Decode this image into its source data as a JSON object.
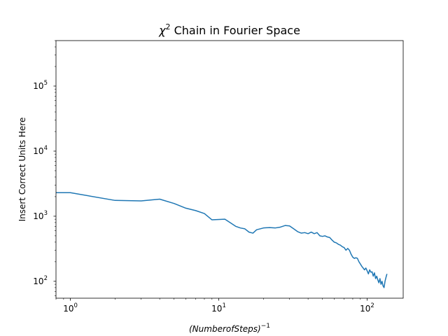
{
  "chart_data": {
    "type": "line",
    "title_symbol": "χ",
    "title_exponent": "2",
    "title_rest": " Chain in Fourier Space",
    "xlabel_base": "(NumberofSteps)",
    "xlabel_exponent": "−1",
    "ylabel": "Insert Correct Units Here",
    "xscale": "log",
    "yscale": "log",
    "xlim": [
      0.8,
      175
    ],
    "ylim": [
      55,
      500000
    ],
    "grid": false,
    "color": "#1f77b4",
    "x_ticks": [
      {
        "value": 1,
        "base": "10",
        "exp": "0"
      },
      {
        "value": 10,
        "base": "10",
        "exp": "1"
      },
      {
        "value": 100,
        "base": "10",
        "exp": "2"
      }
    ],
    "y_ticks": [
      {
        "value": 100,
        "base": "10",
        "exp": "2"
      },
      {
        "value": 1000,
        "base": "10",
        "exp": "3"
      },
      {
        "value": 10000,
        "base": "10",
        "exp": "4"
      },
      {
        "value": 100000,
        "base": "10",
        "exp": "5"
      }
    ],
    "series": [
      {
        "x": [
          0.8,
          1,
          2,
          3,
          4,
          5,
          6,
          7,
          8,
          9,
          11,
          12,
          13,
          14,
          15,
          16,
          17,
          18,
          19,
          20,
          22,
          24,
          26,
          28,
          30,
          32,
          34,
          36,
          38,
          40,
          42,
          44,
          46,
          48,
          50,
          52,
          54,
          56,
          58,
          60,
          62,
          64,
          66,
          68,
          70,
          72,
          74,
          76,
          78,
          80,
          82,
          84,
          86,
          88,
          90,
          92,
          94,
          96,
          98,
          100,
          102,
          104,
          106,
          108,
          110,
          112,
          114,
          116,
          118,
          120,
          122,
          124,
          126,
          128,
          130,
          132,
          134,
          136
        ],
        "y": [
          2300,
          2300,
          1750,
          1720,
          1830,
          1570,
          1330,
          1220,
          1100,
          880,
          900,
          790,
          700,
          660,
          640,
          570,
          550,
          620,
          640,
          660,
          670,
          660,
          680,
          720,
          710,
          640,
          580,
          550,
          560,
          540,
          570,
          540,
          560,
          500,
          490,
          500,
          480,
          470,
          430,
          400,
          390,
          370,
          360,
          340,
          330,
          300,
          320,
          300,
          260,
          235,
          225,
          230,
          225,
          200,
          185,
          170,
          160,
          150,
          160,
          145,
          130,
          150,
          138,
          140,
          120,
          135,
          110,
          120,
          105,
          95,
          110,
          90,
          100,
          85,
          80,
          100,
          115,
          130
        ]
      }
    ]
  }
}
